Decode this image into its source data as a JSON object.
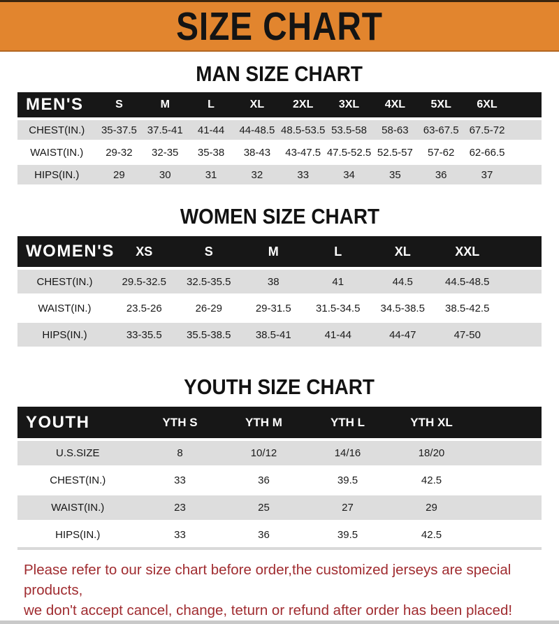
{
  "banner": {
    "title": "SIZE CHART"
  },
  "colors": {
    "banner_bg": "#E2852E",
    "banner_edge": "#3A250F",
    "bar_bg": "#171717",
    "bar_text": "#FFFFFF",
    "stripe": "#DDDDDD",
    "footer_text": "#A02C30"
  },
  "tables": [
    {
      "heading": "MAN SIZE CHART",
      "corner": "MEN'S",
      "columns": [
        "S",
        "M",
        "L",
        "XL",
        "2XL",
        "3XL",
        "4XL",
        "5XL",
        "6XL"
      ],
      "rows": [
        {
          "label": "CHEST(IN.)",
          "values": [
            "35-37.5",
            "37.5-41",
            "41-44",
            "44-48.5",
            "48.5-53.5",
            "53.5-58",
            "58-63",
            "63-67.5",
            "67.5-72"
          ]
        },
        {
          "label": "WAIST(IN.)",
          "values": [
            "29-32",
            "32-35",
            "35-38",
            "38-43",
            "43-47.5",
            "47.5-52.5",
            "52.5-57",
            "57-62",
            "62-66.5"
          ]
        },
        {
          "label": "HIPS(IN.)",
          "values": [
            "29",
            "30",
            "31",
            "32",
            "33",
            "34",
            "35",
            "36",
            "37"
          ]
        }
      ]
    },
    {
      "heading": "WOMEN SIZE CHART",
      "corner": "WOMEN'S",
      "columns": [
        "XS",
        "S",
        "M",
        "L",
        "XL",
        "XXL"
      ],
      "rows": [
        {
          "label": "CHEST(IN.)",
          "values": [
            "29.5-32.5",
            "32.5-35.5",
            "38",
            "41",
            "44.5",
            "44.5-48.5"
          ]
        },
        {
          "label": "WAIST(IN.)",
          "values": [
            "23.5-26",
            "26-29",
            "29-31.5",
            "31.5-34.5",
            "34.5-38.5",
            "38.5-42.5"
          ]
        },
        {
          "label": "HIPS(IN.)",
          "values": [
            "33-35.5",
            "35.5-38.5",
            "38.5-41",
            "41-44",
            "44-47",
            "47-50"
          ]
        }
      ]
    },
    {
      "heading": "YOUTH SIZE CHART",
      "corner": "YOUTH",
      "columns": [
        "YTH S",
        "YTH M",
        "YTH L",
        "YTH XL"
      ],
      "rows": [
        {
          "label": "U.S.SIZE",
          "values": [
            "8",
            "10/12",
            "14/16",
            "18/20"
          ]
        },
        {
          "label": "CHEST(IN.)",
          "values": [
            "33",
            "36",
            "39.5",
            "42.5"
          ]
        },
        {
          "label": "WAIST(IN.)",
          "values": [
            "23",
            "25",
            "27",
            "29"
          ]
        },
        {
          "label": "HIPS(IN.)",
          "values": [
            "33",
            "36",
            "39.5",
            "42.5"
          ]
        }
      ]
    }
  ],
  "footer": {
    "line1": "Please refer to our size chart before order,the customized jerseys are special products,",
    "line2": "we don't accept cancel, change, teturn or refund after order has been placed!"
  }
}
